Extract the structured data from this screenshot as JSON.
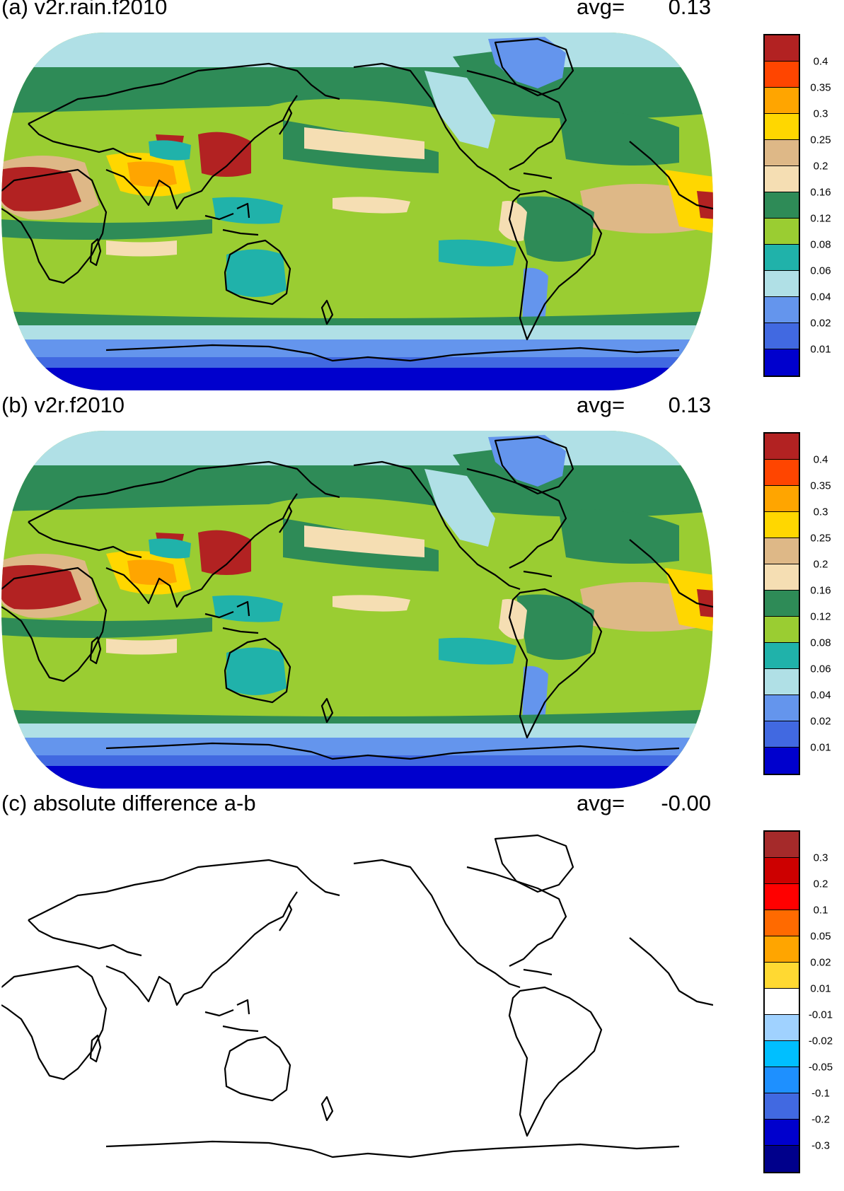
{
  "panels": [
    {
      "id": "a",
      "title": "(a) v2r.rain.f2010",
      "avg_label": "avg=",
      "avg_value": "0.13",
      "colorbar": {
        "labels": [
          "0.4",
          "0.35",
          "0.3",
          "0.25",
          "0.2",
          "0.16",
          "0.12",
          "0.08",
          "0.06",
          "0.04",
          "0.02",
          "0.01"
        ],
        "colors": [
          "#b22222",
          "#ff4500",
          "#ffa500",
          "#ffd700",
          "#deb887",
          "#f5deb3",
          "#2e8b57",
          "#9acd32",
          "#20b2aa",
          "#b0e0e6",
          "#6495ed",
          "#4169e1",
          "#0000cd"
        ]
      }
    },
    {
      "id": "b",
      "title": "(b) v2r.f2010",
      "avg_label": "avg=",
      "avg_value": "0.13",
      "colorbar": {
        "labels": [
          "0.4",
          "0.35",
          "0.3",
          "0.25",
          "0.2",
          "0.16",
          "0.12",
          "0.08",
          "0.06",
          "0.04",
          "0.02",
          "0.01"
        ],
        "colors": [
          "#b22222",
          "#ff4500",
          "#ffa500",
          "#ffd700",
          "#deb887",
          "#f5deb3",
          "#2e8b57",
          "#9acd32",
          "#20b2aa",
          "#b0e0e6",
          "#6495ed",
          "#4169e1",
          "#0000cd"
        ]
      }
    },
    {
      "id": "c",
      "title": "(c) absolute difference a-b",
      "avg_label": "avg=",
      "avg_value": "-0.00",
      "colorbar": {
        "labels": [
          "0.3",
          "0.2",
          "0.1",
          "0.05",
          "0.02",
          "0.01",
          "-0.01",
          "-0.02",
          "-0.05",
          "-0.1",
          "-0.2",
          "-0.3"
        ],
        "colors": [
          "#a52a2a",
          "#cd0000",
          "#ff0000",
          "#ff6a00",
          "#ffa500",
          "#ffd932",
          "#ffffff",
          "#a0d2ff",
          "#00bfff",
          "#1e90ff",
          "#4169e1",
          "#0000cd",
          "#00008b"
        ]
      }
    }
  ]
}
